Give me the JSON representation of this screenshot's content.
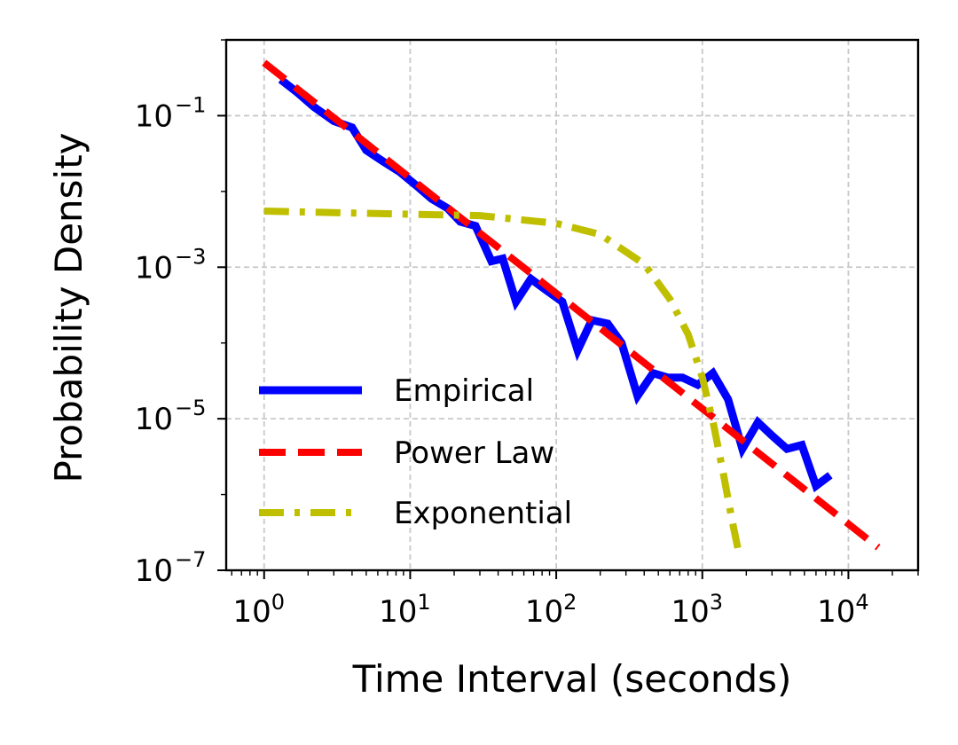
{
  "chart_data": {
    "type": "line",
    "xscale": "log",
    "yscale": "log",
    "xlabel": "Time Interval (seconds)",
    "ylabel": "Probability Density",
    "xlim": [
      0.55,
      30000
    ],
    "ylim": [
      1e-07,
      1
    ],
    "grid": true,
    "legend_position": "lower-left",
    "xticks": [
      {
        "value": 1,
        "base": "10",
        "exp": "0"
      },
      {
        "value": 10,
        "base": "10",
        "exp": "1"
      },
      {
        "value": 100,
        "base": "10",
        "exp": "2"
      },
      {
        "value": 1000,
        "base": "10",
        "exp": "3"
      },
      {
        "value": 10000,
        "base": "10",
        "exp": "4"
      }
    ],
    "yticks": [
      {
        "value": 0.1,
        "base": "10",
        "exp": "−1"
      },
      {
        "value": 0.001,
        "base": "10",
        "exp": "−3"
      },
      {
        "value": 1e-05,
        "base": "10",
        "exp": "−5"
      },
      {
        "value": 1e-07,
        "base": "10",
        "exp": "−7"
      }
    ],
    "series": [
      {
        "name": "Empirical",
        "color": "#0000ff",
        "style": "solid",
        "x": [
          1.3,
          1.7,
          2.2,
          3.0,
          4.0,
          5.0,
          6.5,
          8.5,
          11,
          14,
          18,
          22,
          28,
          36,
          43,
          53,
          67,
          85,
          110,
          140,
          175,
          225,
          280,
          360,
          460,
          580,
          730,
          930,
          1180,
          1500,
          1880,
          2400,
          3000,
          3800,
          4800,
          6000,
          7500
        ],
        "values": [
          0.3,
          0.2,
          0.13,
          0.085,
          0.07,
          0.035,
          0.025,
          0.018,
          0.012,
          0.008,
          0.006,
          0.004,
          0.0035,
          0.0012,
          0.0013,
          0.00035,
          0.0007,
          0.0005,
          0.00035,
          8e-05,
          0.0002,
          0.00018,
          0.0001,
          2e-05,
          4e-05,
          3.5e-05,
          3.5e-05,
          2.8e-05,
          4e-05,
          1.8e-05,
          4e-06,
          9e-06,
          6e-06,
          4e-06,
          4.5e-06,
          1.3e-06,
          1.8e-06
        ]
      },
      {
        "name": "Power Law",
        "color": "#ff0000",
        "style": "dashed",
        "x": [
          1,
          16000
        ],
        "values": [
          0.5,
          2e-07
        ]
      },
      {
        "name": "Exponential",
        "color": "#bfbf00",
        "style": "dashdot",
        "x": [
          1,
          10,
          30,
          100,
          200,
          400,
          600,
          800,
          1000,
          1200,
          1400,
          1600,
          1800
        ],
        "values": [
          0.0055,
          0.005,
          0.0048,
          0.0038,
          0.0027,
          0.0011,
          0.00038,
          0.00013,
          3.5e-05,
          8e-06,
          1.8e-06,
          4.5e-07,
          1.5e-07
        ]
      }
    ]
  }
}
